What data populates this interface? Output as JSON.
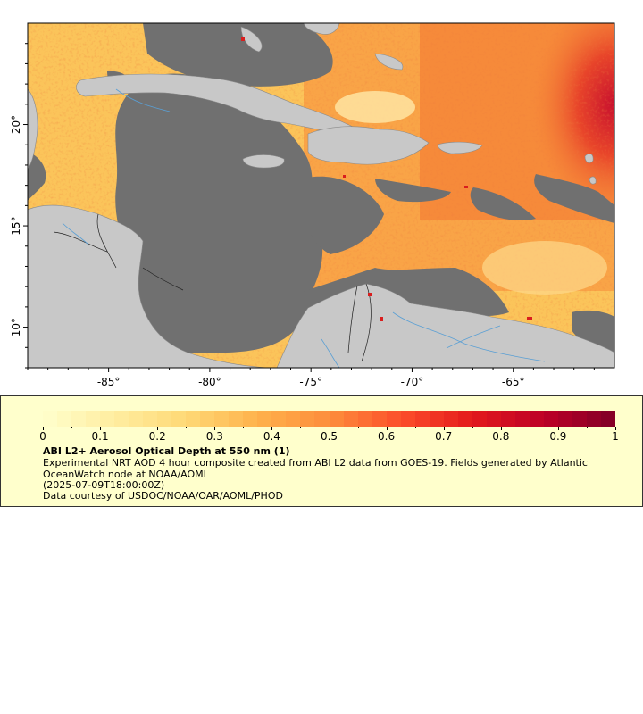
{
  "map": {
    "lon_ticks": [
      {
        "value": -85,
        "label": "-85°"
      },
      {
        "value": -80,
        "label": "-80°"
      },
      {
        "value": -75,
        "label": "-75°"
      },
      {
        "value": -70,
        "label": "-70°"
      },
      {
        "value": -65,
        "label": "-65°"
      }
    ],
    "lat_ticks": [
      {
        "value": 20,
        "label": "20°"
      },
      {
        "value": 15,
        "label": "15°"
      },
      {
        "value": 10,
        "label": "10°"
      }
    ],
    "lon_range": [
      -89,
      -60
    ],
    "lat_range": [
      8,
      25
    ],
    "colors": {
      "ocean_nodata": "#707070",
      "land": "#c8c8c8",
      "rivers": "#5a9fd4",
      "borders": "#808080"
    }
  },
  "legend": {
    "title": "ABI L2+ Aerosol Optical Depth at 550 nm (1)",
    "description": "Experimental NRT AOD 4 hour composite created from ABI L2 data from GOES-19. Fields generated by Atlantic OceanWatch node at NOAA/AOML",
    "date": "(2025-07-09T18:00:00Z)",
    "credit": "Data courtesy of USDOC/NOAA/OAR/AOML/PHOD",
    "colorbar": {
      "min": 0,
      "max": 1,
      "ticks": [
        {
          "value": 0,
          "label": "0"
        },
        {
          "value": 0.1,
          "label": "0.1"
        },
        {
          "value": 0.2,
          "label": "0.2"
        },
        {
          "value": 0.3,
          "label": "0.3"
        },
        {
          "value": 0.4,
          "label": "0.4"
        },
        {
          "value": 0.5,
          "label": "0.5"
        },
        {
          "value": 0.6,
          "label": "0.6"
        },
        {
          "value": 0.7,
          "label": "0.7"
        },
        {
          "value": 0.8,
          "label": "0.8"
        },
        {
          "value": 0.9,
          "label": "0.9"
        },
        {
          "value": 1,
          "label": "1"
        }
      ],
      "stops": [
        "#ffffcc",
        "#ffeda0",
        "#fed976",
        "#feb24c",
        "#fd8d3c",
        "#fc4e2a",
        "#e31a1c",
        "#bd0026",
        "#800026"
      ]
    }
  }
}
